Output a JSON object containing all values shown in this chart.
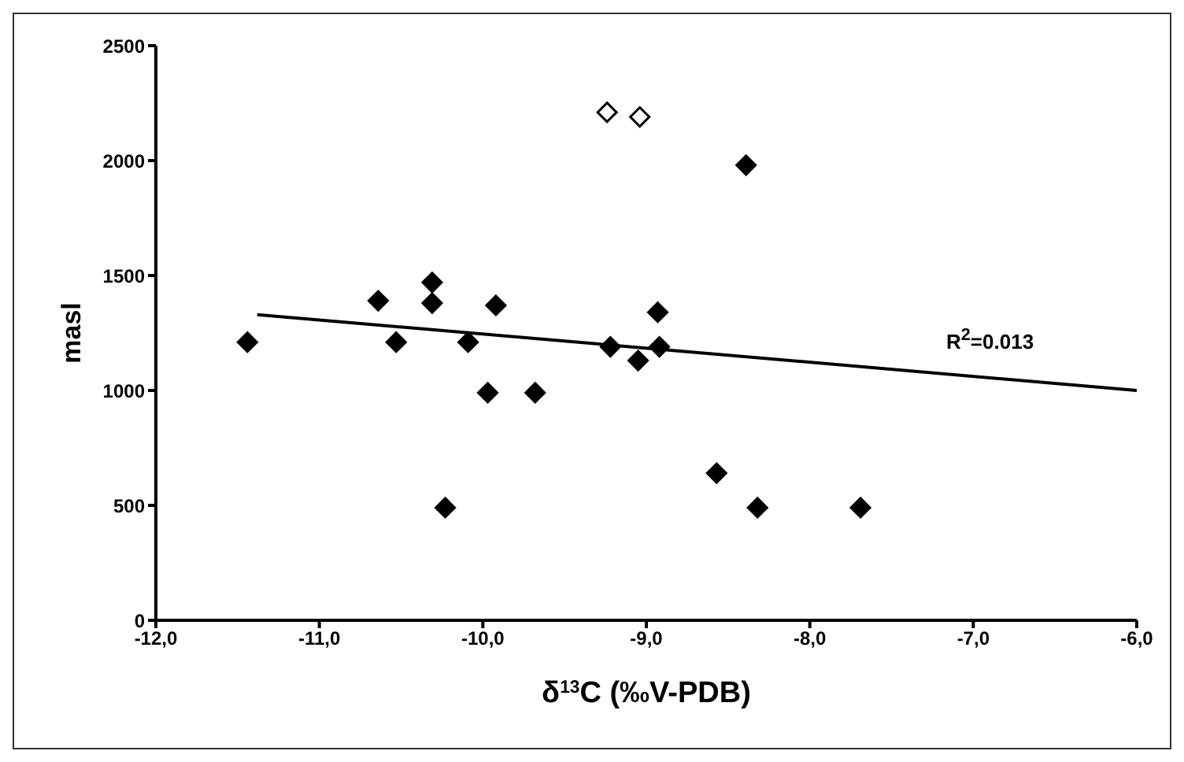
{
  "chart_data": {
    "type": "scatter",
    "xlabel": "δ$^{13}$C (‰V-PDB)",
    "ylabel": "masl",
    "xlim": [
      -12,
      -6
    ],
    "ylim": [
      0,
      2500
    ],
    "xticks": [
      {
        "value": -12,
        "label": "-12,0"
      },
      {
        "value": -11,
        "label": "-11,0"
      },
      {
        "value": -10,
        "label": "-10,0"
      },
      {
        "value": -9,
        "label": "-9,0"
      },
      {
        "value": -8,
        "label": "-8,0"
      },
      {
        "value": -7,
        "label": "-7,0"
      },
      {
        "value": -6,
        "label": "-6,0"
      }
    ],
    "yticks": [
      0,
      500,
      1000,
      1500,
      2000,
      2500
    ],
    "marker": "diamond",
    "series": [
      {
        "color": "#000000",
        "x": [
          -11.44,
          -10.64,
          -10.53,
          -10.31,
          -10.31,
          -10.09,
          -9.97,
          -9.92,
          -9.68,
          -10.23,
          -9.22,
          -9.05,
          -8.92,
          -8.93,
          -8.39,
          -8.57,
          -8.32,
          -7.69
        ],
        "values": [
          1210,
          1390,
          1210,
          1470,
          1380,
          1210,
          990,
          1370,
          990,
          490,
          1190,
          1130,
          1190,
          1340,
          1980,
          640,
          490,
          490
        ]
      },
      {
        "color": "#ffffff",
        "x": [
          -9.24,
          -9.04
        ],
        "values": [
          2210,
          2190
        ]
      },
      {
        "type": "line",
        "color": "#000000",
        "x": [
          -11.38,
          -6
        ],
        "values": [
          1330,
          1000
        ],
        "marker": "none"
      }
    ],
    "annotations": [
      "R$^{2}$=0.013"
    ]
  }
}
